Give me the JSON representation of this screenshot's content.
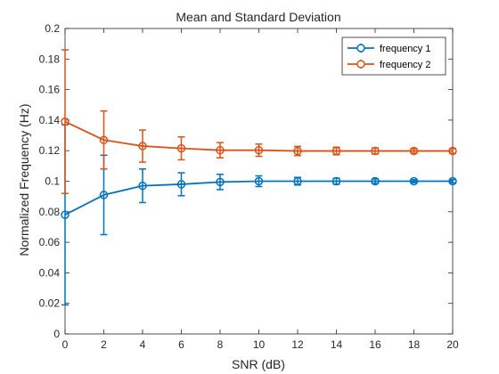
{
  "chart_data": {
    "type": "line",
    "title": "Mean and Standard Deviation",
    "xlabel": "SNR (dB)",
    "ylabel": "Normalized Frequency (Hz)",
    "xlim": [
      0,
      20
    ],
    "ylim": [
      0,
      0.2
    ],
    "xticks": [
      0,
      2,
      4,
      6,
      8,
      10,
      12,
      14,
      16,
      18,
      20
    ],
    "yticks": [
      0,
      0.02,
      0.04,
      0.06,
      0.08,
      0.1,
      0.12,
      0.14,
      0.16,
      0.18,
      0.2
    ],
    "grid": false,
    "legend_position": "top-right",
    "x": [
      0,
      2,
      4,
      6,
      8,
      10,
      12,
      14,
      16,
      18,
      20
    ],
    "series": [
      {
        "name": "frequency 1",
        "color": "#0072BD",
        "values": [
          0.078,
          0.091,
          0.097,
          0.098,
          0.0995,
          0.1,
          0.1,
          0.1,
          0.1,
          0.1,
          0.1
        ],
        "error": [
          0.059,
          0.026,
          0.011,
          0.0075,
          0.005,
          0.0035,
          0.0025,
          0.002,
          0.0015,
          0.001,
          0.001
        ]
      },
      {
        "name": "frequency 2",
        "color": "#D95319",
        "values": [
          0.139,
          0.127,
          0.123,
          0.1215,
          0.1203,
          0.1203,
          0.1198,
          0.1198,
          0.1198,
          0.1198,
          0.1198
        ],
        "error": [
          0.047,
          0.019,
          0.0105,
          0.0075,
          0.005,
          0.004,
          0.003,
          0.0025,
          0.002,
          0.0015,
          0.0015
        ]
      }
    ]
  }
}
